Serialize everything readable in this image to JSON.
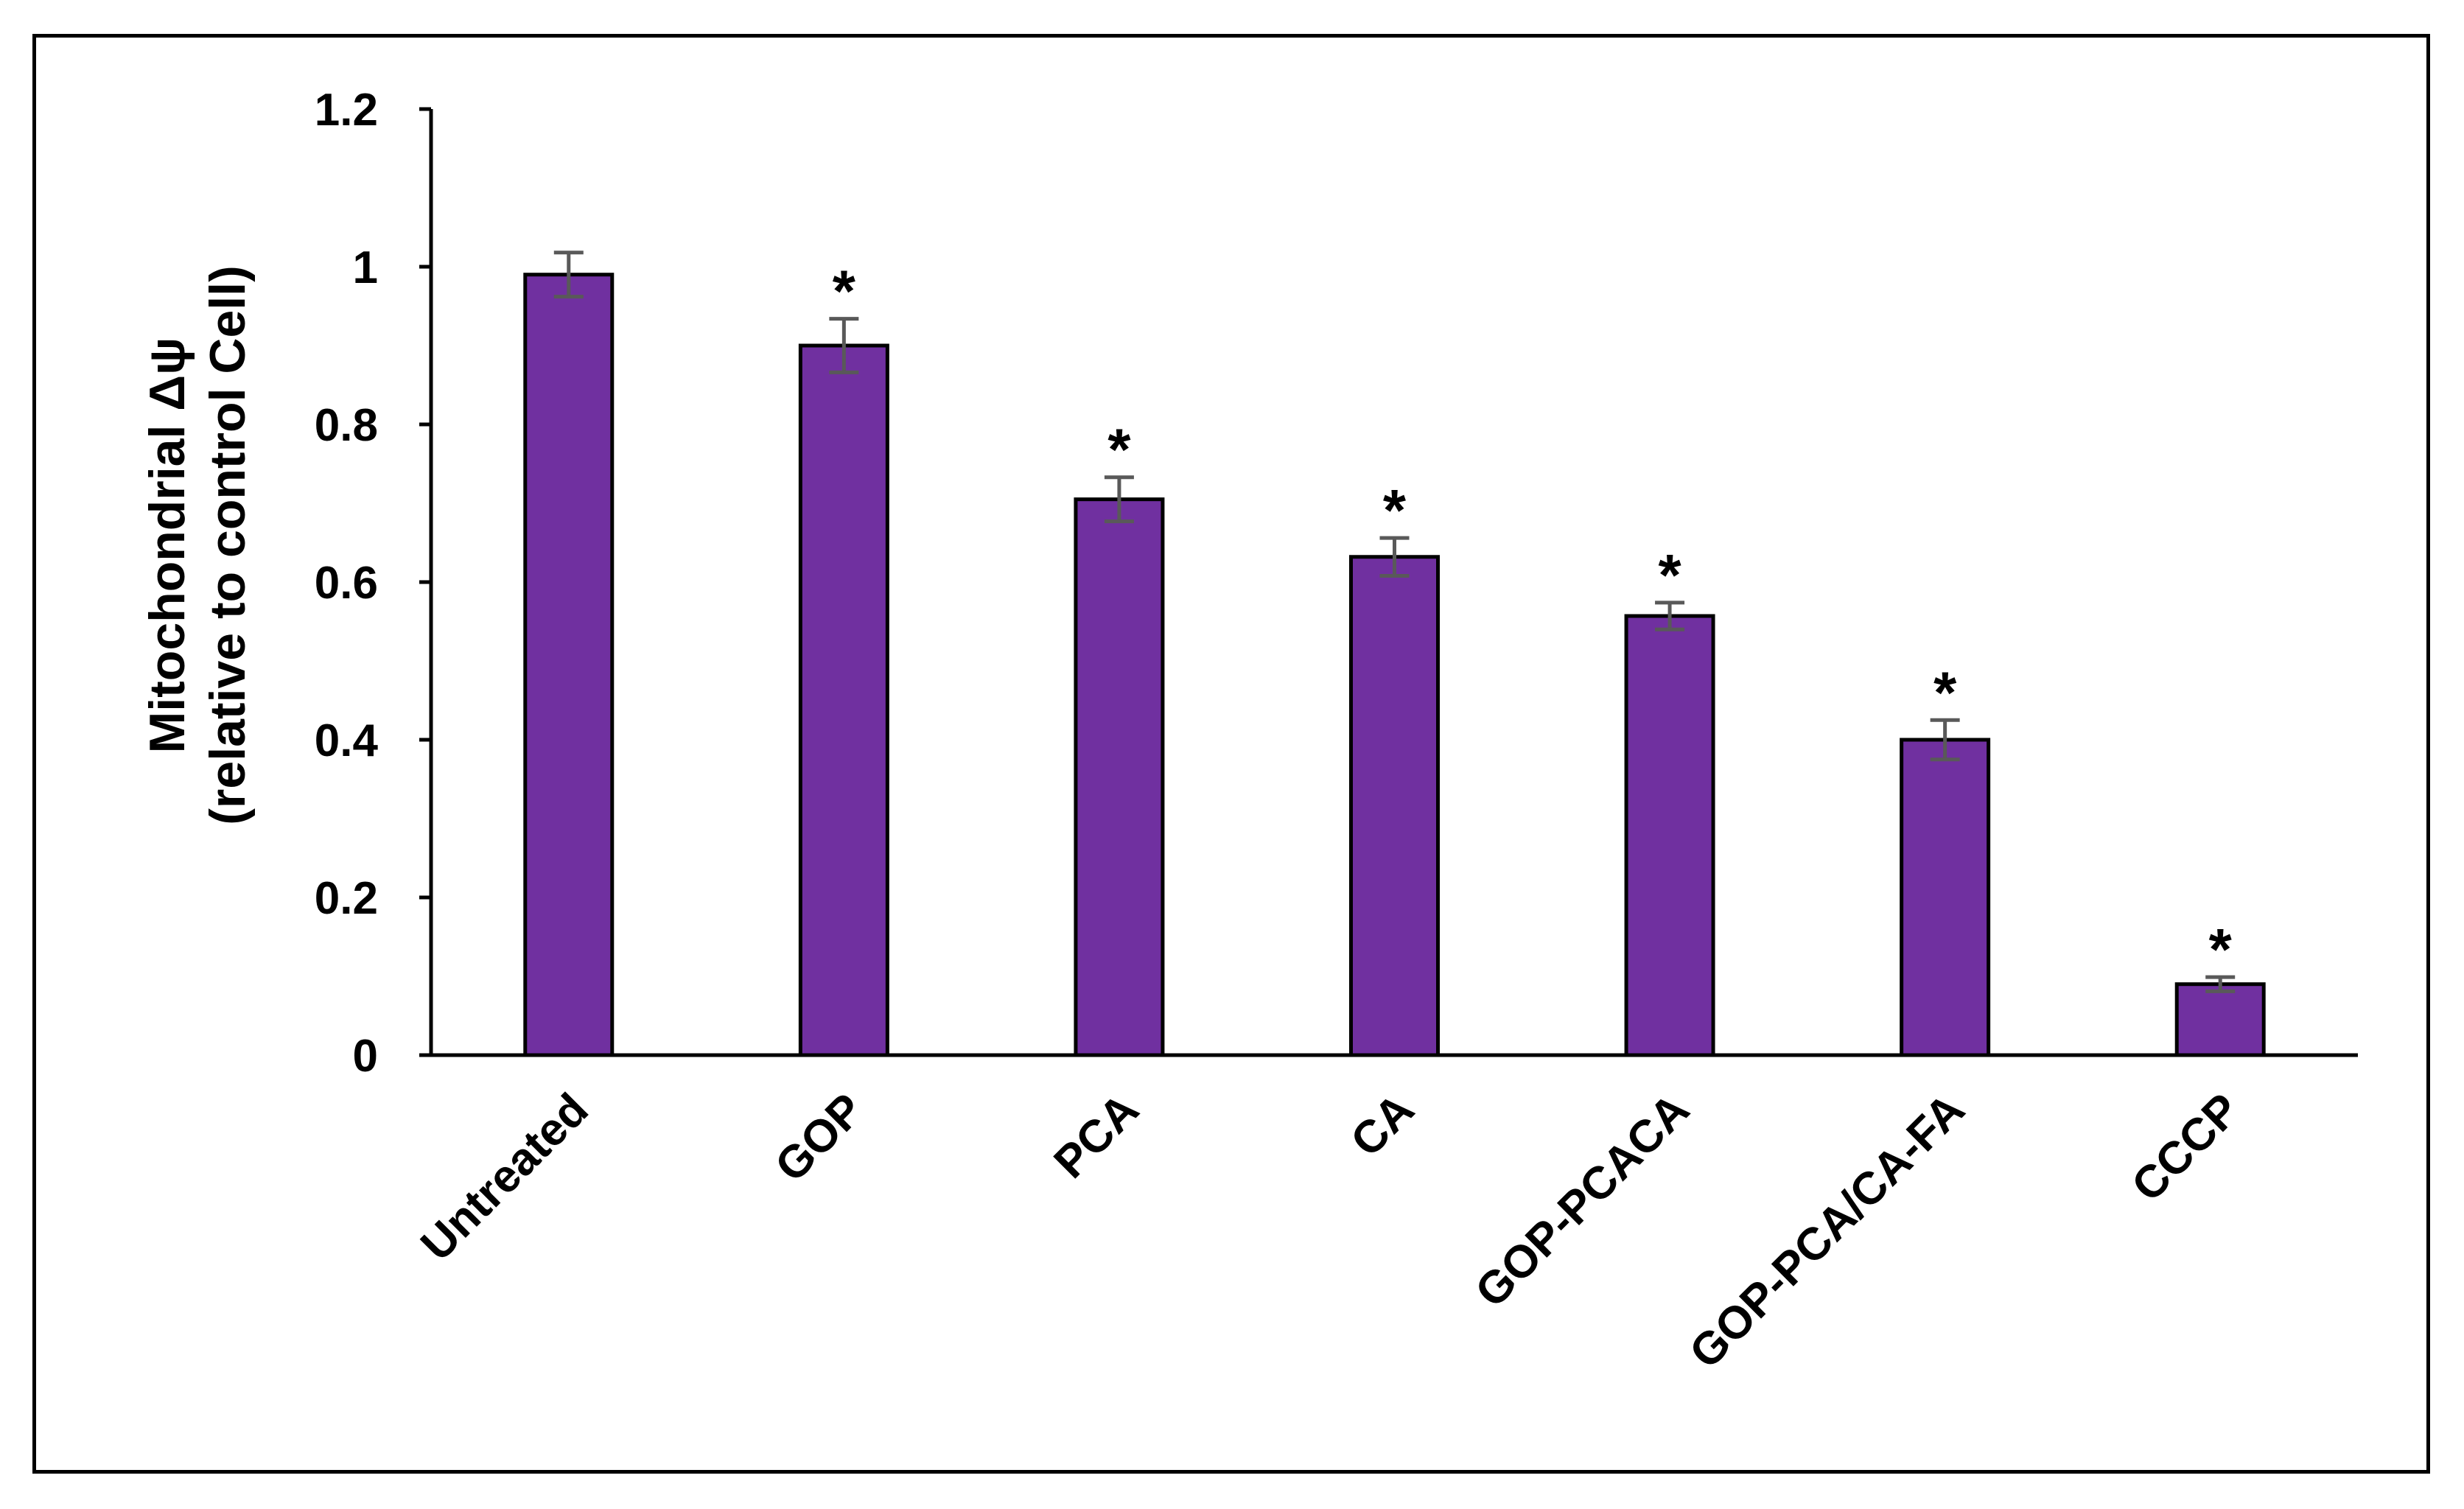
{
  "chart_data": {
    "type": "bar",
    "categories": [
      "Untreated",
      "GOP",
      "PCA",
      "CA",
      "GOP-PCACA",
      "GOP-PCA/CA-FA",
      "CCCP"
    ],
    "series": [
      {
        "values": [
          0.99,
          0.9,
          0.705,
          0.632,
          0.557,
          0.4,
          0.09
        ],
        "errors": [
          0.028,
          0.034,
          0.028,
          0.024,
          0.017,
          0.025,
          0.009
        ],
        "significance": [
          "",
          "*",
          "*",
          "*",
          "*",
          "*",
          "*"
        ]
      }
    ],
    "title": "",
    "xlabel": "",
    "ylabel_line1": "Mitochondrial Δψ",
    "ylabel_line2": "(relative to control Cell)",
    "ylim": [
      0,
      1.2
    ],
    "yticks": [
      0,
      0.2,
      0.4,
      0.6,
      0.8,
      1,
      1.2
    ],
    "ytick_labels": [
      "0",
      "0.2",
      "0.4",
      "0.6",
      "0.8",
      "1",
      "1.2"
    ],
    "grid": false,
    "legend": "none",
    "bar_color": "#7030a0",
    "error_bar_color": "#595959"
  }
}
